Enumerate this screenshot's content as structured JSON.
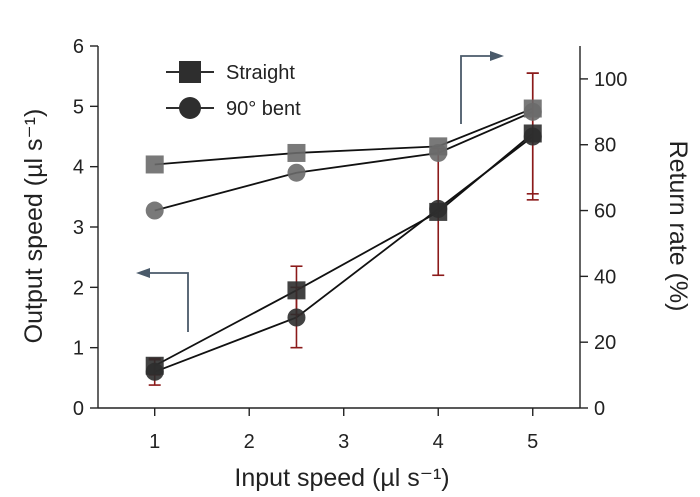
{
  "chart_data": {
    "type": "line",
    "title": "",
    "xlabel": "Input speed (µl s⁻¹)",
    "ylabel_left": "Output speed (µl s⁻¹)",
    "ylabel_right": "Return rate (%)",
    "xlim": [
      0.4,
      5.5
    ],
    "ylim_left": [
      0,
      6
    ],
    "ylim_right": [
      0,
      110
    ],
    "xticks": [
      1,
      2,
      3,
      4,
      5
    ],
    "yticks_left": [
      0,
      1,
      2,
      3,
      4,
      5,
      6
    ],
    "yticks_right": [
      0,
      20,
      40,
      60,
      80,
      100
    ],
    "legend": [
      {
        "name": "Straight",
        "marker": "square"
      },
      {
        "name": "90° bent",
        "marker": "circle"
      }
    ],
    "legend_position": "top-left",
    "series": [
      {
        "name": "Straight",
        "axis": "right",
        "marker": "square",
        "color": "#6a6a6a",
        "x": [
          1,
          2.5,
          4,
          5
        ],
        "y": [
          74,
          77.5,
          79.5,
          91
        ]
      },
      {
        "name": "90° bent",
        "axis": "right",
        "marker": "circle",
        "color": "#6a6a6a",
        "x": [
          1,
          2.5,
          4,
          5
        ],
        "y": [
          60,
          71.5,
          77.5,
          90
        ]
      },
      {
        "name": "Straight",
        "axis": "left",
        "marker": "square",
        "color": "#2e2e2e",
        "x": [
          1,
          2.5,
          4,
          5
        ],
        "y": [
          0.7,
          1.95,
          3.25,
          4.55
        ],
        "err_low": [
          0.55,
          1.55,
          2.2,
          3.55
        ],
        "err_high": [
          0.8,
          2.35,
          4.3,
          5.55
        ]
      },
      {
        "name": "90° bent",
        "axis": "left",
        "marker": "circle",
        "color": "#2e2e2e",
        "x": [
          1,
          2.5,
          4,
          5
        ],
        "y": [
          0.6,
          1.5,
          3.3,
          4.5
        ],
        "err_low": [
          0.38,
          1.0,
          3.3,
          3.45
        ],
        "err_high": [
          0.82,
          2.0,
          3.3,
          5.55
        ]
      }
    ],
    "colors": {
      "axis": "#222222",
      "line": "#111111",
      "errorbar": "#8b1a1a",
      "arrow": "#4a5a6a",
      "marker_light": "#6a6a6a",
      "marker_dark": "#2e2e2e"
    },
    "annotations": [
      {
        "type": "arrow",
        "direction": "left",
        "meaning": "points to left axis"
      },
      {
        "type": "arrow",
        "direction": "right",
        "meaning": "points to right axis"
      }
    ]
  }
}
